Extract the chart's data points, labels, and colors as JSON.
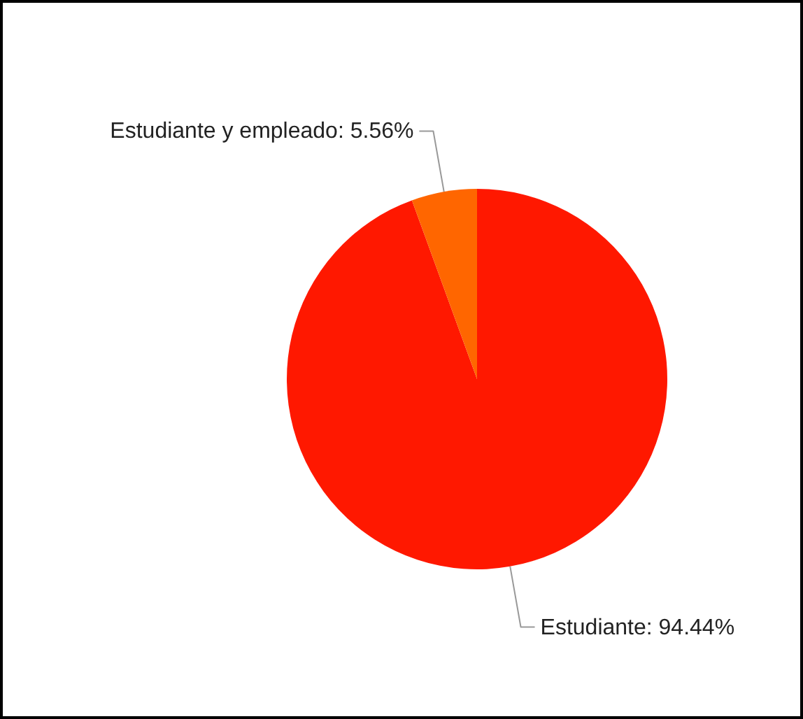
{
  "chart_data": {
    "type": "pie",
    "categories": [
      "Estudiante",
      "Estudiante y empleado"
    ],
    "values": [
      94.44,
      5.56
    ],
    "colors": [
      "#ff1800",
      "#ff6600"
    ],
    "value_labels": [
      "94.44%",
      "5.56%"
    ]
  }
}
